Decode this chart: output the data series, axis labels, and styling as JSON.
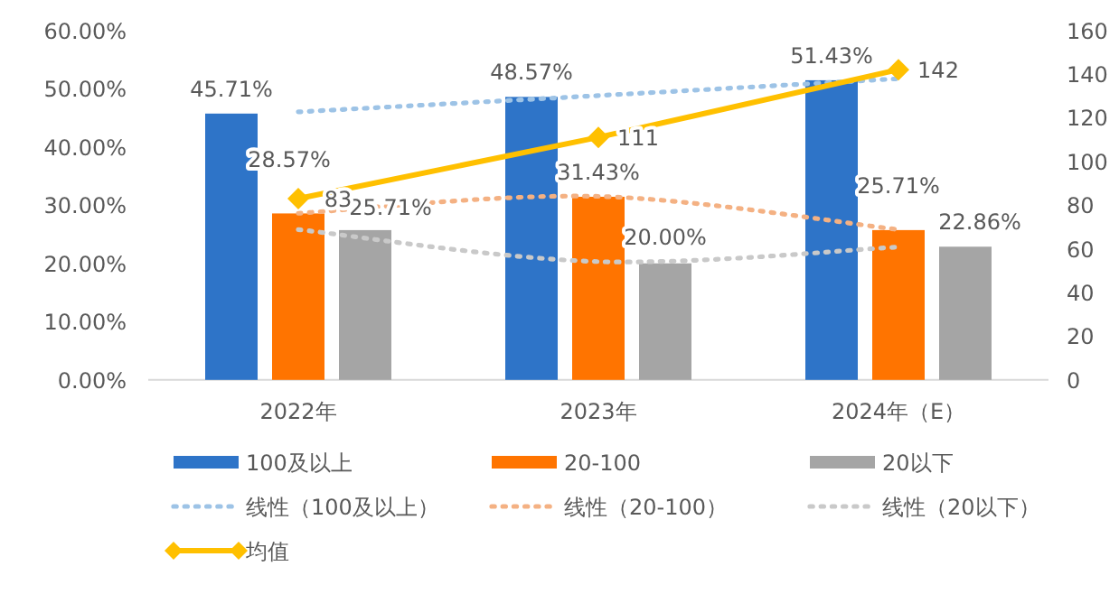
{
  "chart_data": {
    "type": "bar",
    "categories": [
      "2022年",
      "2023年",
      "2024年（E）"
    ],
    "series": [
      {
        "name": "100及以上",
        "color": "#2e74c8",
        "values": [
          45.71,
          48.57,
          51.43
        ],
        "value_labels": [
          "45.71%",
          "48.57%",
          "51.43%"
        ]
      },
      {
        "name": "20-100",
        "color": "#ff7400",
        "values": [
          28.57,
          31.43,
          25.71
        ],
        "value_labels": [
          "28.57%",
          "31.43%",
          "25.71%"
        ]
      },
      {
        "name": "20以下",
        "color": "#a5a5a5",
        "values": [
          25.71,
          20.0,
          22.86
        ],
        "value_labels": [
          "25.71%",
          "20.00%",
          "22.86%"
        ]
      },
      {
        "name": "线性（100及以上）",
        "type": "line",
        "color": "#9dc3e6",
        "line_style": "dotted",
        "marker": "none",
        "values": [
          46.0,
          48.8,
          51.7
        ]
      },
      {
        "name": "线性（20-100）",
        "type": "line",
        "color": "#f4b183",
        "line_style": "dotted",
        "marker": "none",
        "values": [
          28.6,
          31.5,
          25.8
        ]
      },
      {
        "name": "线性（20以下）",
        "type": "line",
        "color": "#c9c9c9",
        "line_style": "dotted",
        "marker": "none",
        "values": [
          25.8,
          20.3,
          22.8
        ]
      },
      {
        "name": "均值",
        "type": "line",
        "axis": "y2",
        "color": "#ffc000",
        "line_style": "solid",
        "marker": "diamond",
        "values": [
          83,
          111,
          142
        ],
        "value_labels": [
          "83",
          "111",
          "142"
        ]
      }
    ],
    "ylim": [
      0,
      60
    ],
    "yticks": [
      {
        "value": 0,
        "label": "0.00%"
      },
      {
        "value": 10,
        "label": "10.00%"
      },
      {
        "value": 20,
        "label": "20.00%"
      },
      {
        "value": 30,
        "label": "30.00%"
      },
      {
        "value": 40,
        "label": "40.00%"
      },
      {
        "value": 50,
        "label": "50.00%"
      },
      {
        "value": 60,
        "label": "60.00%"
      }
    ],
    "y2lim": [
      0,
      160
    ],
    "y2ticks": [
      0,
      20,
      40,
      60,
      80,
      100,
      120,
      140,
      160
    ],
    "legend": "bottom",
    "grid": false
  }
}
